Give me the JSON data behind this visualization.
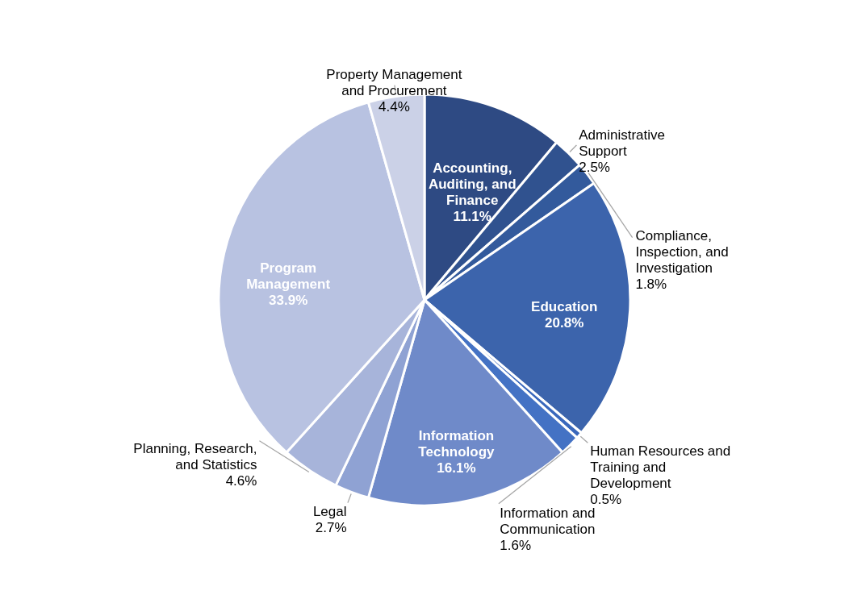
{
  "chart_data": {
    "type": "pie",
    "categories": [
      "Accounting, Auditing, and Finance",
      "Administrative Support",
      "Compliance, Inspection, and Investigation",
      "Education",
      "Human Resources and Training and Development",
      "Information and Communication",
      "Information Technology",
      "Legal",
      "Planning, Research, and Statistics",
      "Program Management",
      "Property Management and Procurement"
    ],
    "values": [
      11.1,
      2.5,
      1.8,
      20.8,
      0.5,
      1.6,
      16.1,
      2.7,
      4.6,
      33.9,
      4.4
    ],
    "value_labels": [
      "11.1%",
      "2.5%",
      "1.8%",
      "20.8%",
      "0.5%",
      "1.6%",
      "16.1%",
      "2.7%",
      "4.6%",
      "33.9%",
      "4.4%"
    ],
    "colors": [
      "#2e4a83",
      "#30528f",
      "#335a9c",
      "#3c64ac",
      "#3a68bc",
      "#4472c4",
      "#6f8ac9",
      "#8fa2d3",
      "#a7b4da",
      "#b8c2e1",
      "#cbd1e7"
    ]
  }
}
